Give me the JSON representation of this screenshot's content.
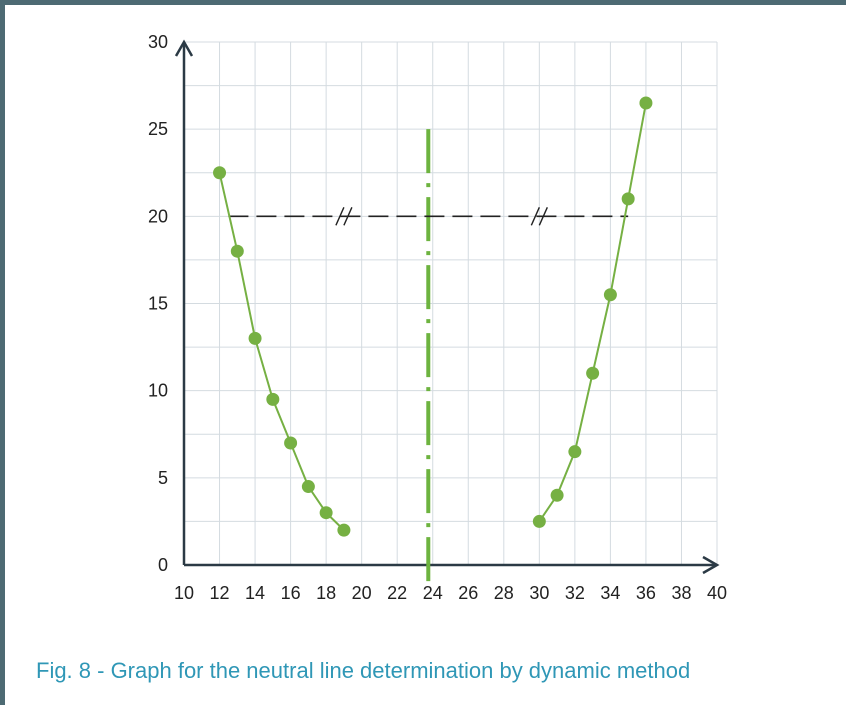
{
  "caption": "Fig. 8 -  Graph for the neutral line determination by dynamic method",
  "colors": {
    "series": "#76b043",
    "neutral_line": "#6db33f",
    "axis": "#2b3a45",
    "grid": "#d4dbe0",
    "guide": "#222222",
    "frame": "#4d6a73",
    "caption": "#2f97b6"
  },
  "chart_data": {
    "type": "line",
    "xlim": [
      10,
      40
    ],
    "ylim": [
      0,
      30
    ],
    "x_ticks": [
      10,
      12,
      14,
      16,
      18,
      20,
      22,
      24,
      26,
      28,
      30,
      32,
      34,
      36,
      38,
      40
    ],
    "y_ticks": [
      0,
      5,
      10,
      15,
      20,
      25,
      30
    ],
    "grid": true,
    "series": [
      {
        "x": [
          12,
          13,
          14,
          15,
          16,
          17,
          18,
          19
        ],
        "y": [
          22.5,
          18,
          13,
          9.5,
          7,
          4.5,
          3,
          2
        ]
      },
      {
        "x": [
          30,
          31,
          32,
          33,
          34,
          35,
          36
        ],
        "y": [
          2.5,
          4,
          6.5,
          11,
          15.5,
          21,
          26.5
        ]
      }
    ],
    "neutral_line": {
      "x": 23.75,
      "y_range": [
        0,
        25
      ]
    },
    "guide_line": {
      "y": 20,
      "x_range": [
        12.5,
        35
      ],
      "tick_marks_at": [
        19,
        30
      ]
    }
  }
}
